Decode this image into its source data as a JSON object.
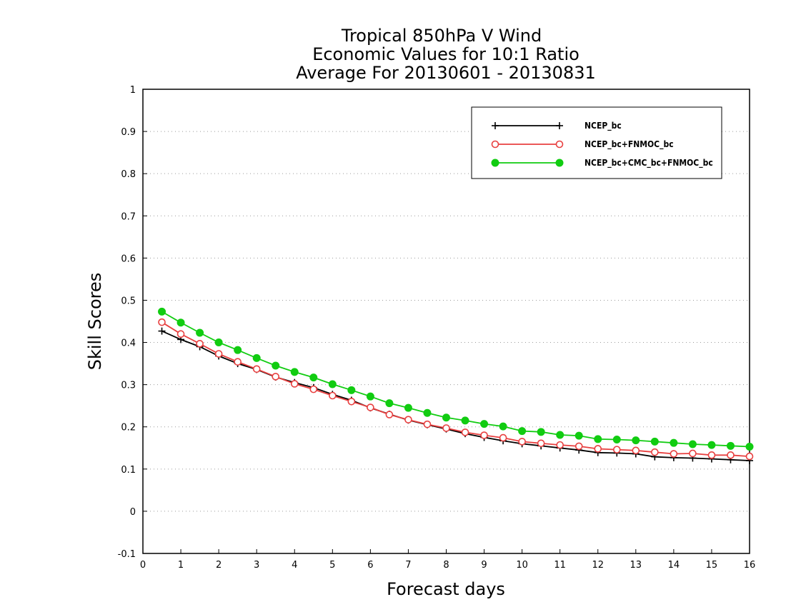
{
  "chart_data": {
    "type": "line",
    "title": [
      "Tropical 850hPa V Wind",
      "Economic Values for 10:1 Ratio",
      "Average For 20130601 - 20130831"
    ],
    "xlabel": "Forecast days",
    "ylabel": "Skill Scores",
    "xlim": [
      0,
      16
    ],
    "ylim": [
      -0.1,
      1
    ],
    "xticks": [
      0,
      1,
      2,
      3,
      4,
      5,
      6,
      7,
      8,
      9,
      10,
      11,
      12,
      13,
      14,
      15,
      16
    ],
    "yticks": [
      -0.1,
      0,
      0.1,
      0.2,
      0.3,
      0.4,
      0.5,
      0.6,
      0.7,
      0.8,
      0.9,
      1
    ],
    "ytick_labels": [
      "-0.1",
      "0",
      "0.1",
      "0.2",
      "0.3",
      "0.4",
      "0.5",
      "0.6",
      "0.7",
      "0.8",
      "0.9",
      "1"
    ],
    "grid": "horizontal dotted",
    "legend_position": "top-right",
    "x": [
      0.5,
      1,
      1.5,
      2,
      2.5,
      3,
      3.5,
      4,
      4.5,
      5,
      5.5,
      6,
      6.5,
      7,
      7.5,
      8,
      8.5,
      9,
      9.5,
      10,
      10.5,
      11,
      11.5,
      12,
      12.5,
      13,
      13.5,
      14,
      14.5,
      15,
      15.5,
      16
    ],
    "series": [
      {
        "name": "NCEP_bc",
        "color": "#000000",
        "marker": "plus",
        "values": [
          0.427,
          0.407,
          0.39,
          0.368,
          0.35,
          0.336,
          0.318,
          0.305,
          0.293,
          0.277,
          0.263,
          0.245,
          0.23,
          0.216,
          0.205,
          0.195,
          0.184,
          0.175,
          0.167,
          0.16,
          0.155,
          0.15,
          0.145,
          0.139,
          0.138,
          0.136,
          0.129,
          0.127,
          0.126,
          0.124,
          0.122,
          0.12
        ]
      },
      {
        "name": "NCEP_bc+FNMOC_bc",
        "color": "#e84040",
        "marker": "open-circle",
        "values": [
          0.448,
          0.42,
          0.397,
          0.373,
          0.354,
          0.337,
          0.319,
          0.302,
          0.289,
          0.274,
          0.26,
          0.246,
          0.229,
          0.217,
          0.206,
          0.197,
          0.187,
          0.18,
          0.174,
          0.165,
          0.161,
          0.157,
          0.154,
          0.148,
          0.146,
          0.144,
          0.14,
          0.136,
          0.137,
          0.133,
          0.133,
          0.13
        ]
      },
      {
        "name": "NCEP_bc+CMC_bc+FNMOC_bc",
        "color": "#11cc11",
        "marker": "filled-circle",
        "values": [
          0.473,
          0.447,
          0.423,
          0.4,
          0.382,
          0.363,
          0.345,
          0.33,
          0.317,
          0.301,
          0.287,
          0.272,
          0.256,
          0.245,
          0.233,
          0.222,
          0.215,
          0.207,
          0.201,
          0.19,
          0.188,
          0.181,
          0.179,
          0.171,
          0.17,
          0.168,
          0.165,
          0.162,
          0.159,
          0.157,
          0.155,
          0.153
        ]
      }
    ]
  }
}
